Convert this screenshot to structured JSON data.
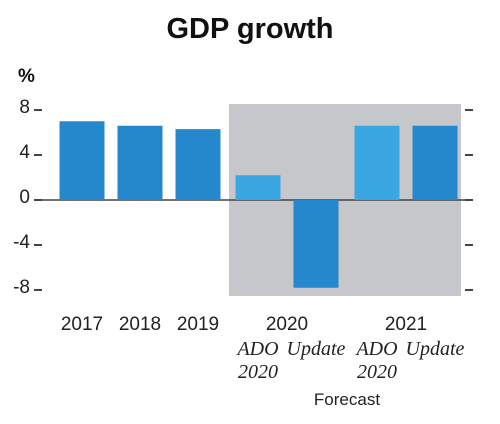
{
  "chart_data": {
    "type": "bar",
    "title": "GDP growth",
    "ylabel": "%",
    "xlabel": "",
    "ylim": [
      -8,
      8
    ],
    "yticks": [
      8,
      4,
      0,
      -4,
      -8
    ],
    "ytick_labels": [
      "8",
      "4",
      "0",
      "-4",
      "-8"
    ],
    "categories": [
      "2017",
      "2018",
      "2019",
      "2020 ADO 2020",
      "2020 Update",
      "2021 ADO 2020",
      "2021 Update"
    ],
    "values": [
      7.0,
      6.6,
      6.3,
      2.2,
      -7.8,
      6.6,
      6.6
    ],
    "year_labels": [
      "2017",
      "2018",
      "2019",
      "2020",
      "2021"
    ],
    "forecast_sublabels": [
      {
        "line1": "ADO",
        "line2": "2020"
      },
      {
        "line1": "Update",
        "line2": ""
      },
      {
        "line1": "ADO",
        "line2": "2020"
      },
      {
        "line1": "Update",
        "line2": ""
      }
    ],
    "forecast_label": "Forecast",
    "forecast_start_index": 3,
    "grid": false,
    "colors": {
      "actual": "#2587cc",
      "ado": "#3aa7e2",
      "update": "#2587cc",
      "forecast_bg": "#c5c7ca",
      "axis": "#444444"
    }
  }
}
